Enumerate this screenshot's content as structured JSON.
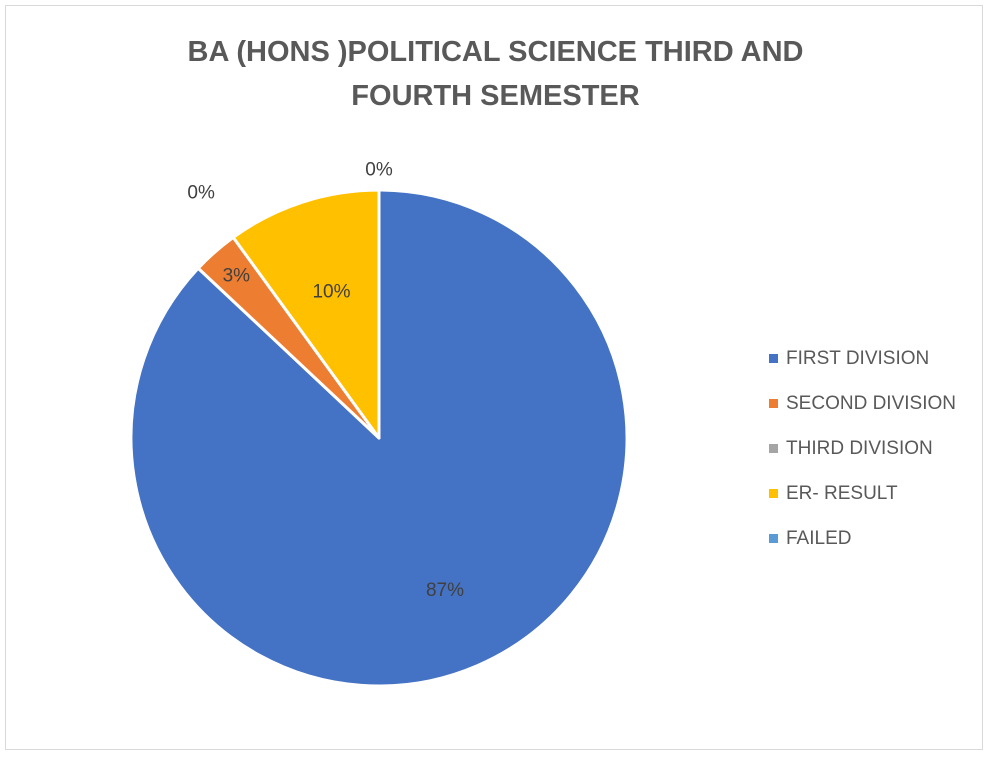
{
  "chart_data": {
    "type": "pie",
    "title_lines": [
      "BA (HONS )POLITICAL SCIENCE THIRD AND",
      "FOURTH SEMESTER"
    ],
    "slices": [
      {
        "name": "FIRST DIVISION",
        "value": 87,
        "label": "87%",
        "color": "#4472c4"
      },
      {
        "name": "SECOND DIVISION",
        "value": 3,
        "label": "3%",
        "color": "#ed7d31"
      },
      {
        "name": "THIRD DIVISION",
        "value": 0,
        "label": "0%",
        "color": "#a5a5a5"
      },
      {
        "name": "ER- RESULT",
        "value": 10,
        "label": "10%",
        "color": "#ffc000"
      },
      {
        "name": "FAILED",
        "value": 0,
        "label": "0%",
        "color": "#5b9bd5"
      }
    ],
    "legend_position": "right",
    "start_angle": "12 o'clock",
    "direction": "clockwise"
  }
}
